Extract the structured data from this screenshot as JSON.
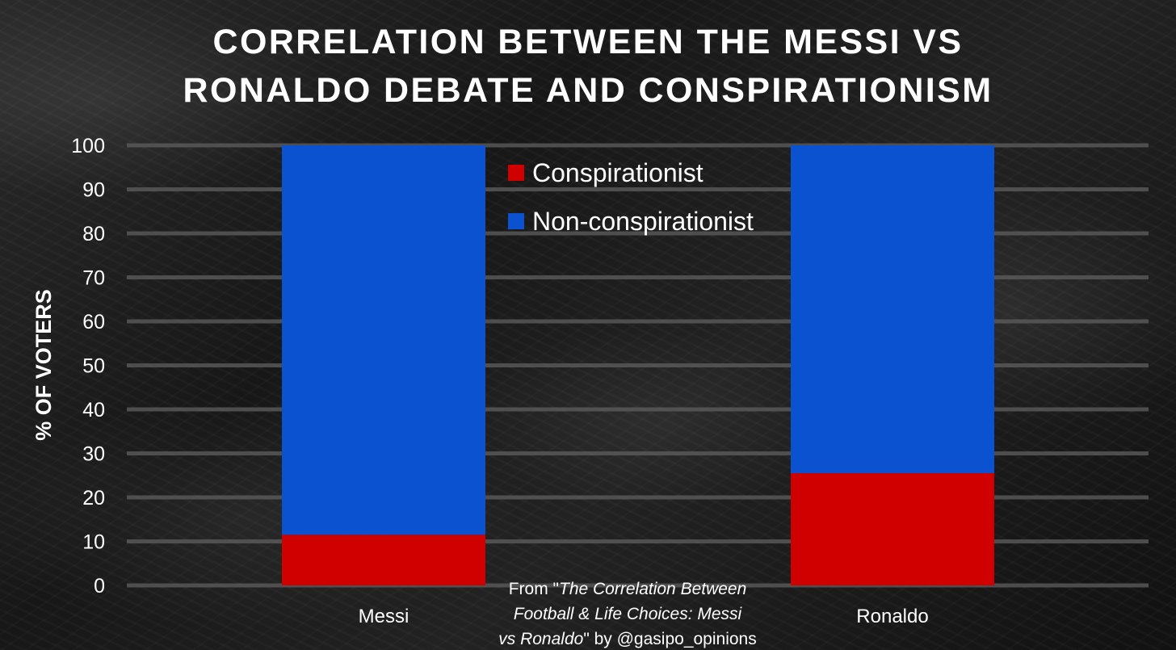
{
  "chart_data": {
    "type": "bar",
    "stacked": true,
    "title_lines": [
      "CORRELATION BETWEEN THE MESSI VS",
      "RONALDO DEBATE AND CONSPIRATIONISM"
    ],
    "ylabel": "% OF VOTERS",
    "xlabel": "",
    "ylim": [
      0,
      100
    ],
    "yticks": [
      0,
      10,
      20,
      30,
      40,
      50,
      60,
      70,
      80,
      90,
      100
    ],
    "grid": true,
    "legend_position": "top-center",
    "categories": [
      "Messi",
      "Ronaldo"
    ],
    "series": [
      {
        "name": "Conspirationist",
        "color": "#d10000",
        "values": [
          11.5,
          25.5
        ]
      },
      {
        "name": "Non-conspirationist",
        "color": "#0a52d0",
        "values": [
          88.5,
          74.5
        ]
      }
    ]
  },
  "source_note": {
    "prefix": "From \"",
    "italic_line1": "The Correlation Between",
    "italic_line2": "Football & Life Choices: Messi",
    "italic_line3": "vs Ronaldo",
    "suffix": "\" by @gasipo_opinions"
  }
}
